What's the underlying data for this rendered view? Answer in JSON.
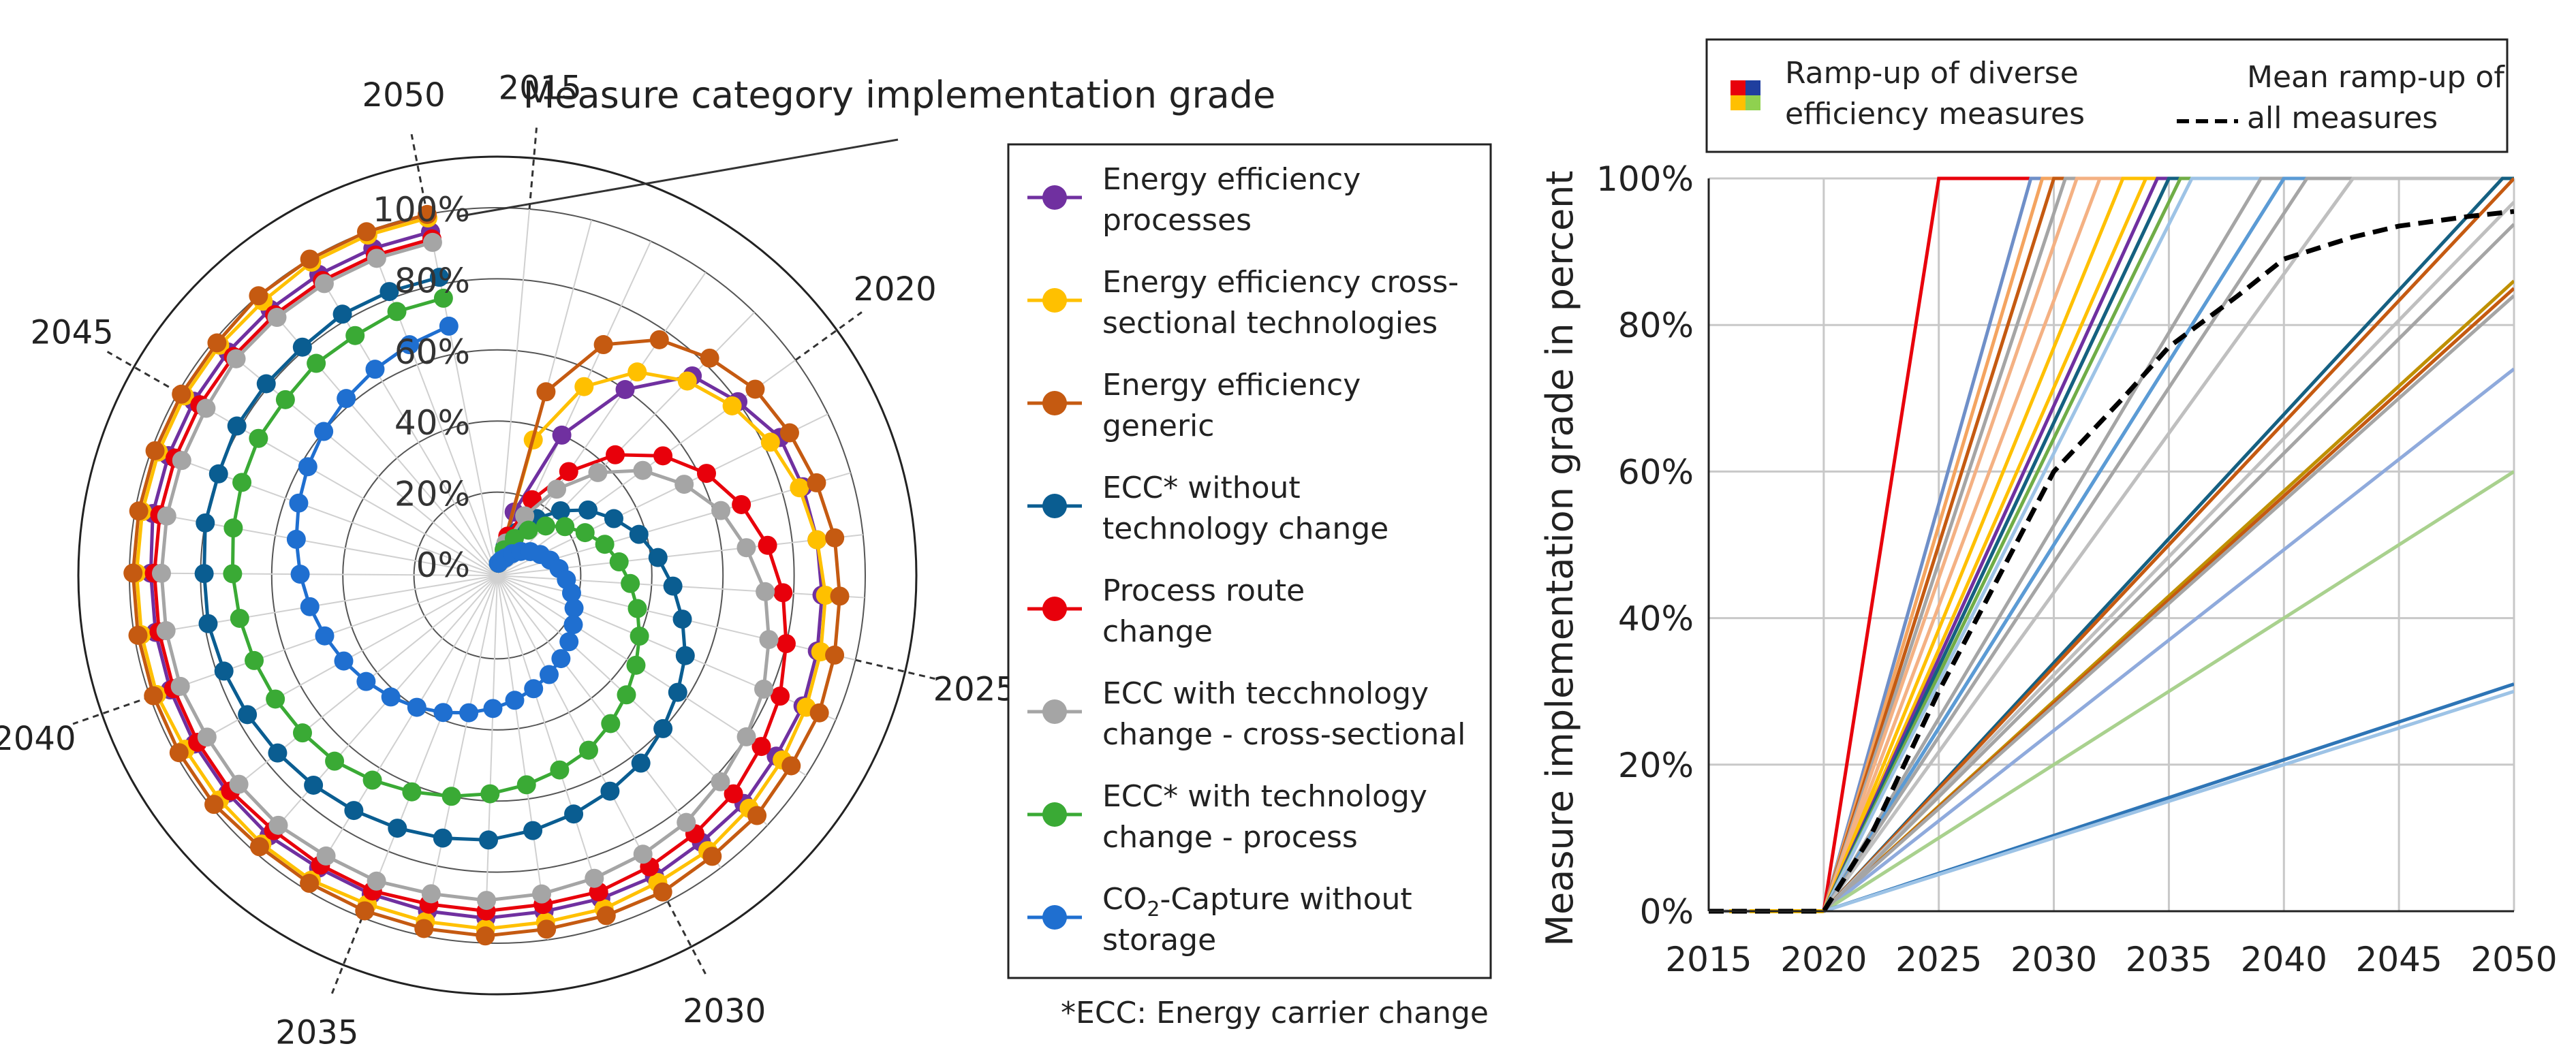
{
  "chart_data": [
    {
      "type": "polar",
      "title": "Measure category implementation grade",
      "year_labels": [
        "2015",
        "2020",
        "2025",
        "2030",
        "2035",
        "2040",
        "2045",
        "2050"
      ],
      "radial_ticks": [
        "0%",
        "20%",
        "40%",
        "60%",
        "80%",
        "100%"
      ],
      "start_year": 2015,
      "end_year": 2050,
      "series": [
        {
          "name": "Energy efficiency processes",
          "color": "#7030a0",
          "values": [
            0,
            0.15,
            0.4,
            0.6,
            0.75,
            0.8,
            0.85,
            0.86,
            0.87,
            0.88,
            0.89,
            0.9,
            0.9,
            0.91,
            0.91,
            0.92,
            0.92,
            0.92,
            0.93,
            0.93,
            0.93,
            0.93,
            0.94,
            0.94,
            0.94,
            0.94,
            0.94,
            0.94,
            0.95,
            0.95,
            0.95,
            0.95,
            0.95,
            0.95,
            0.95,
            0.95
          ]
        },
        {
          "name": "Energy efficiency cross-sectional technologies",
          "color": "#ffc000",
          "values": [
            0,
            0.36,
            0.55,
            0.66,
            0.73,
            0.78,
            0.82,
            0.85,
            0.87,
            0.89,
            0.9,
            0.91,
            0.92,
            0.93,
            0.94,
            0.94,
            0.95,
            0.95,
            0.96,
            0.96,
            0.96,
            0.97,
            0.97,
            0.97,
            0.97,
            0.98,
            0.98,
            0.98,
            0.98,
            0.98,
            0.98,
            0.98,
            0.98,
            0.99,
            0.99,
            0.99
          ]
        },
        {
          "name": "Energy efficiency generic",
          "color": "#c55a11",
          "values": [
            0,
            0.5,
            0.68,
            0.77,
            0.82,
            0.86,
            0.88,
            0.9,
            0.92,
            0.93,
            0.94,
            0.95,
            0.95,
            0.96,
            0.96,
            0.97,
            0.97,
            0.97,
            0.98,
            0.98,
            0.98,
            0.98,
            0.98,
            0.99,
            0.99,
            0.99,
            0.99,
            0.99,
            0.99,
            0.99,
            0.99,
            0.99,
            1.0,
            1.0,
            1.0,
            1.0
          ]
        },
        {
          "name": "ECC* without technology change",
          "color": "#0a5d91",
          "values": [
            0,
            0.05,
            0.1,
            0.16,
            0.22,
            0.28,
            0.33,
            0.38,
            0.42,
            0.46,
            0.5,
            0.54,
            0.57,
            0.6,
            0.63,
            0.65,
            0.67,
            0.69,
            0.71,
            0.72,
            0.73,
            0.74,
            0.75,
            0.76,
            0.77,
            0.78,
            0.79,
            0.79,
            0.8,
            0.8,
            0.81,
            0.81,
            0.81,
            0.82,
            0.82,
            0.82
          ]
        },
        {
          "name": "Process route change",
          "color": "#e8000b",
          "values": [
            0,
            0.08,
            0.2,
            0.32,
            0.44,
            0.54,
            0.62,
            0.68,
            0.73,
            0.77,
            0.8,
            0.83,
            0.85,
            0.87,
            0.88,
            0.89,
            0.9,
            0.9,
            0.91,
            0.91,
            0.92,
            0.92,
            0.92,
            0.93,
            0.93,
            0.93,
            0.93,
            0.93,
            0.93,
            0.93,
            0.93,
            0.93,
            0.93,
            0.93,
            0.93,
            0.93
          ]
        },
        {
          "name": "ECC with tecchnology change - cross-sectional",
          "color": "#a5a5a5",
          "values": [
            0,
            0.06,
            0.15,
            0.26,
            0.37,
            0.47,
            0.55,
            0.62,
            0.67,
            0.72,
            0.75,
            0.78,
            0.8,
            0.82,
            0.84,
            0.85,
            0.86,
            0.87,
            0.88,
            0.88,
            0.89,
            0.89,
            0.9,
            0.9,
            0.9,
            0.91,
            0.91,
            0.91,
            0.91,
            0.91,
            0.91,
            0.92,
            0.92,
            0.92,
            0.92,
            0.92
          ]
        },
        {
          "name": "ECC* with technology change - process",
          "color": "#3aaa35",
          "values": [
            0,
            0.04,
            0.08,
            0.12,
            0.16,
            0.2,
            0.24,
            0.28,
            0.31,
            0.34,
            0.37,
            0.4,
            0.43,
            0.46,
            0.49,
            0.52,
            0.54,
            0.56,
            0.58,
            0.6,
            0.62,
            0.64,
            0.66,
            0.67,
            0.68,
            0.69,
            0.7,
            0.71,
            0.72,
            0.73,
            0.74,
            0.74,
            0.75,
            0.75,
            0.76,
            0.76
          ]
        },
        {
          "name": "CO₂-Capture without storage",
          "color": "#1f6fd0",
          "values": [
            0,
            0.01,
            0.02,
            0.04,
            0.06,
            0.08,
            0.1,
            0.12,
            0.14,
            0.16,
            0.18,
            0.2,
            0.22,
            0.24,
            0.26,
            0.28,
            0.3,
            0.32,
            0.34,
            0.36,
            0.38,
            0.4,
            0.42,
            0.44,
            0.46,
            0.48,
            0.5,
            0.52,
            0.54,
            0.56,
            0.58,
            0.6,
            0.62,
            0.64,
            0.66,
            0.68
          ]
        }
      ]
    },
    {
      "type": "line",
      "ylabel": "Measure implementation grade in percent",
      "x_ticks": [
        "2015",
        "2020",
        "2025",
        "2030",
        "2035",
        "2040",
        "2045",
        "2050"
      ],
      "y_ticks": [
        "0%",
        "20%",
        "40%",
        "60%",
        "80%",
        "100%"
      ],
      "xlim": [
        2015,
        2050
      ],
      "ylim": [
        0,
        100
      ],
      "legend": {
        "diverse": "Ramp-up of diverse efficiency measures",
        "diverse_lines": [
          "Ramp-up of diverse",
          "efficiency measures"
        ],
        "mean": "Mean ramp-up of all measures",
        "mean_lines": [
          "Mean ramp-up of",
          "all measures"
        ]
      },
      "linear_ramps": [
        {
          "end_year": 2025,
          "color": "#e8000b"
        },
        {
          "end_year": 2029,
          "color": "#6f8fc8"
        },
        {
          "end_year": 2029.5,
          "color": "#f4a460"
        },
        {
          "end_year": 2030,
          "color": "#c55a11"
        },
        {
          "end_year": 2030.5,
          "color": "#a5a5a5"
        },
        {
          "end_year": 2031,
          "color": "#f4b183"
        },
        {
          "end_year": 2032,
          "color": "#f4b183"
        },
        {
          "end_year": 2033,
          "color": "#ffc000"
        },
        {
          "end_year": 2034,
          "color": "#ffc000"
        },
        {
          "end_year": 2034.5,
          "color": "#7030a0"
        },
        {
          "end_year": 2035,
          "color": "#3aaa35"
        },
        {
          "end_year": 2035,
          "color": "#156082"
        },
        {
          "end_year": 2035.5,
          "color": "#70ad47"
        },
        {
          "end_year": 2036,
          "color": "#9dc3e6"
        },
        {
          "end_year": 2039,
          "color": "#a5a5a5"
        },
        {
          "end_year": 2040,
          "color": "#2e75b6"
        },
        {
          "end_year": 2040,
          "color": "#5b9bd5"
        },
        {
          "end_year": 2041,
          "color": "#a5a5a5"
        },
        {
          "end_year": 2043,
          "color": "#bfbfbf"
        },
        {
          "end_year": 2049.5,
          "color": "#156082"
        },
        {
          "end_year": 2050,
          "color": "#c55a11"
        },
        {
          "end_year": 2051,
          "color": "#bfbfbf"
        },
        {
          "end_year": 2052,
          "color": "#a5a5a5"
        }
      ],
      "partial_ramps": [
        {
          "value_2050": 86,
          "color": "#bf9000"
        },
        {
          "value_2050": 85,
          "color": "#c55a11"
        },
        {
          "value_2050": 84,
          "color": "#a5a5a5"
        },
        {
          "value_2050": 74,
          "color": "#8faadc"
        },
        {
          "value_2050": 60,
          "color": "#a9d18e"
        },
        {
          "value_2050": 31,
          "color": "#2e75b6"
        },
        {
          "value_2050": 30,
          "color": "#9dc3e6"
        }
      ],
      "mean": {
        "x": [
          2015,
          2020,
          2022,
          2025,
          2028,
          2030,
          2033,
          2035,
          2038,
          2040,
          2043,
          2045,
          2048,
          2050
        ],
        "y": [
          0,
          0,
          10,
          30,
          48,
          60,
          70,
          77,
          84,
          89,
          92,
          93.5,
          94.8,
          95.5
        ]
      }
    }
  ],
  "footnote": "*ECC: Energy carrier change",
  "colors": {
    "axis": "#333333",
    "grid": "#c8c8c8",
    "text": "#222222"
  }
}
